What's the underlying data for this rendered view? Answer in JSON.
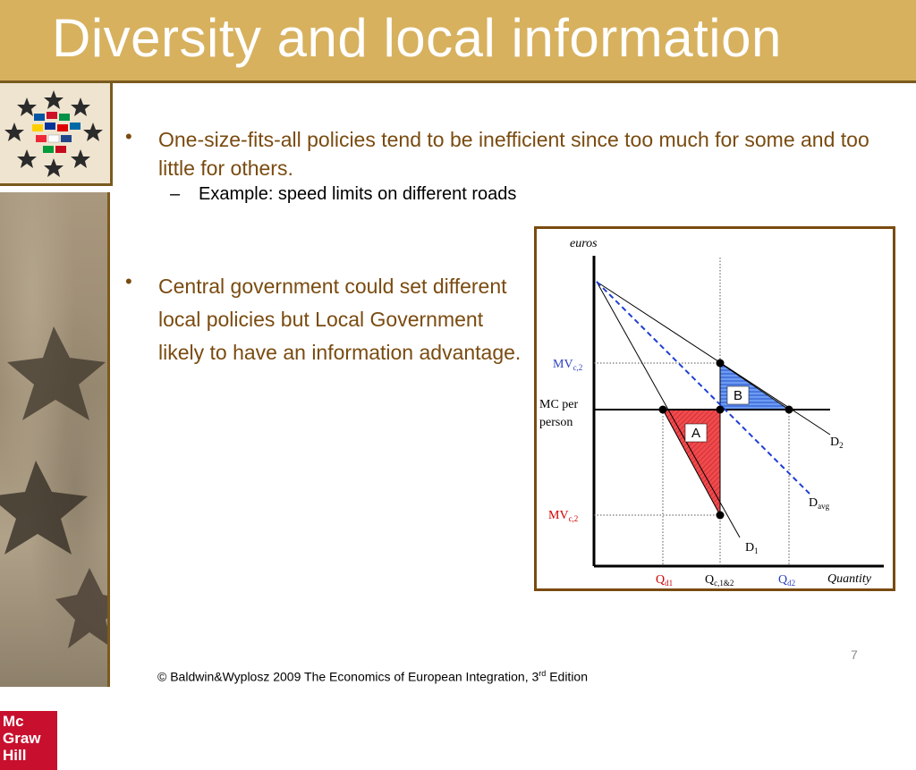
{
  "slide": {
    "title": "Diversity and local information",
    "page_number": "7"
  },
  "bullets": [
    {
      "text": "One-size-fits-all policies tend to be inefficient since too much for some and too little for others.",
      "sub": [
        "Example: speed limits on different roads"
      ]
    },
    {
      "text": "Central government could set different local policies but Local Government likely to have an information advantage."
    }
  ],
  "diagram": {
    "y_axis_label": "euros",
    "x_axis_label": "Quantity",
    "mv_top_label": "MV",
    "mv_top_sub": "c,2",
    "mv_bottom_label": "MV",
    "mv_bottom_sub": "c,2",
    "mc_label_line1": "MC per",
    "mc_label_line2": "person",
    "region_a": "A",
    "region_b": "B",
    "d2_label": "D",
    "d2_sub": "2",
    "davg_label": "D",
    "davg_sub": "avg",
    "d1_label": "D",
    "d1_sub": "1",
    "qd1_label": "Q",
    "qd1_sub": "d1",
    "qc_label": "Q",
    "qc_sub": "c,1&2",
    "qd2_label": "Q",
    "qd2_sub": "d2",
    "colors": {
      "region_a": "#e8363a",
      "region_b": "#5b8ef0",
      "davg_line": "#1f3fd4",
      "mv_bottom_label": "#d00000",
      "mv_top_label": "#2a3fbf",
      "qd1_label": "#d00000",
      "qd2_label": "#2a3fbf"
    }
  },
  "footer": {
    "prefix": "© Baldwin&Wyplosz 2009 The Economics of European Integration, 3",
    "superscript": "rd",
    "suffix": " Edition"
  },
  "branding": {
    "publisher_line1": "Mc",
    "publisher_line2": "Graw",
    "publisher_line3": "Hill"
  }
}
